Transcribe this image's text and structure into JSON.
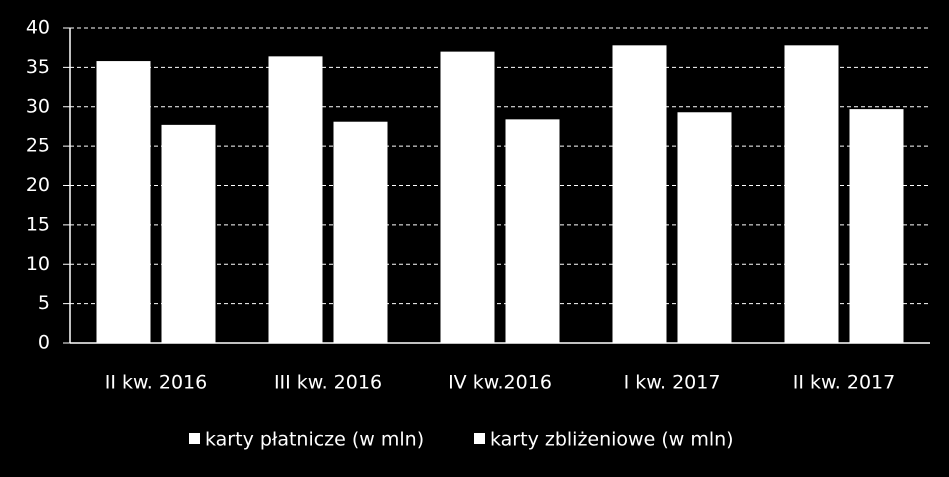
{
  "chart_data": {
    "type": "bar",
    "categories": [
      "II kw. 2016",
      "III kw. 2016",
      "IV kw.2016",
      "I kw. 2017",
      "II kw. 2017"
    ],
    "series": [
      {
        "name": "karty płatnicze (w mln)",
        "color": "#ffffff",
        "values": [
          35.8,
          36.4,
          37.0,
          37.8,
          37.8
        ]
      },
      {
        "name": "karty zbliżeniowe (w mln)",
        "color": "#ffffff",
        "values": [
          27.7,
          28.1,
          28.4,
          29.3,
          29.7
        ]
      }
    ],
    "ylim": [
      0,
      40
    ],
    "yticks": [
      0,
      5,
      10,
      15,
      20,
      25,
      30,
      35,
      40
    ],
    "grid": true
  }
}
